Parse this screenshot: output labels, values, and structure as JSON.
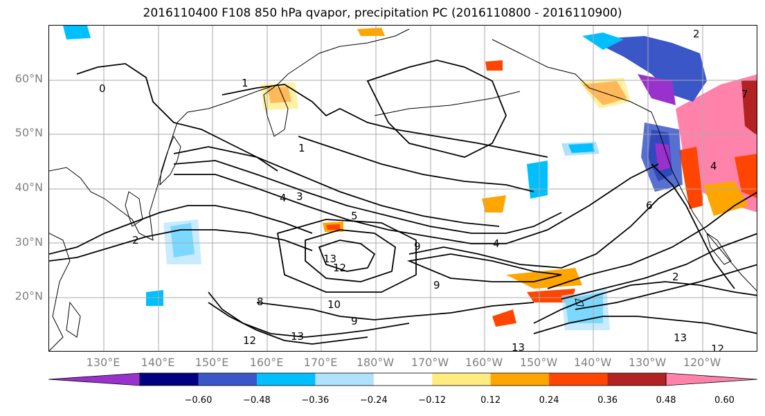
{
  "title": "2016110400 F108 850 hPa qvapor, precipitation PC (2016110800 - 2016110900)",
  "lat_labels": [
    "60°N",
    "50°N",
    "40°N",
    "30°N",
    "20°N"
  ],
  "lon_labels": [
    "130°E",
    "140°E",
    "150°E",
    "160°E",
    "170°E",
    "180°W",
    "170°W",
    "160°W",
    "150°W",
    "140°W",
    "130°W",
    "120°W"
  ],
  "colorbar": {
    "colors": [
      "#9932cc",
      "#000080",
      "#3a56c7",
      "#00bfff",
      "#b0e2ff",
      "#ffffff",
      "#ffeb80",
      "#ffa500",
      "#ff4500",
      "#b22222",
      "#ff82ab"
    ],
    "ticks": [
      "−0.60",
      "−0.48",
      "−0.36",
      "−0.24",
      "−0.12",
      "0.12",
      "0.24",
      "0.36",
      "0.48",
      "0.60"
    ]
  },
  "contour_labels": [
    "0",
    "1",
    "1",
    "4",
    "3",
    "5",
    "9",
    "4",
    "9",
    "13",
    "12",
    "10",
    "8",
    "9",
    "13",
    "12",
    "13",
    "13",
    "12",
    "2",
    "6",
    "4",
    "7",
    "2",
    "2"
  ]
}
